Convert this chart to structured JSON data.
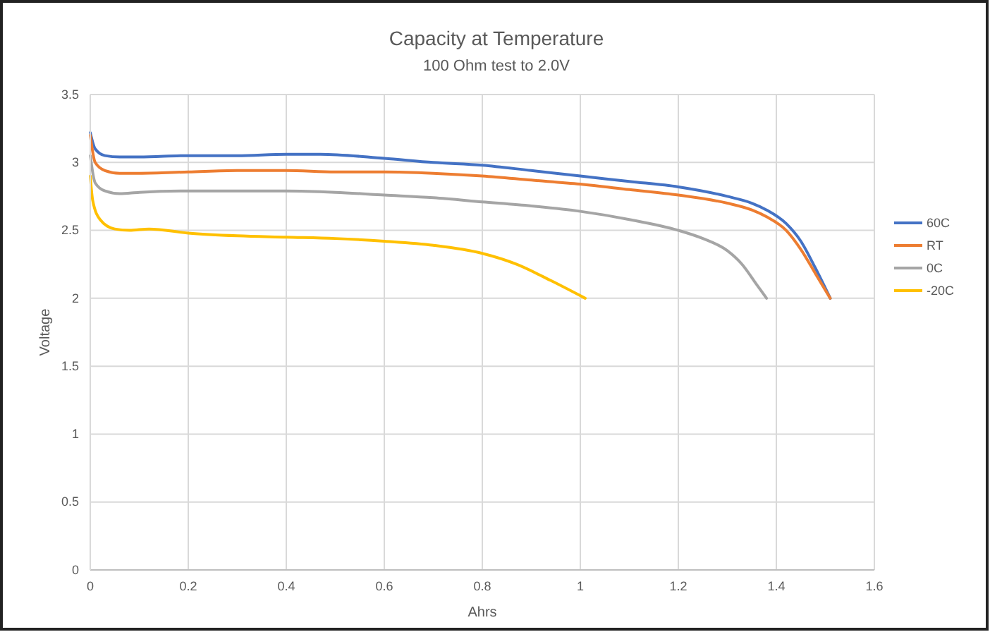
{
  "chart_data": {
    "type": "line",
    "title": "Capacity at Temperature",
    "subtitle": "100 Ohm test to 2.0V",
    "xlabel": "Ahrs",
    "ylabel": "Voltage",
    "xlim": [
      0,
      1.6
    ],
    "xticks": [
      0,
      0.2,
      0.4,
      0.6,
      0.8,
      1,
      1.2,
      1.4,
      1.6
    ],
    "ylim": [
      0,
      3.5
    ],
    "yticks": [
      0,
      0.5,
      1,
      1.5,
      2,
      2.5,
      3,
      3.5
    ],
    "grid": true,
    "legend": "right",
    "marker": "none",
    "line_style": "solid",
    "series": [
      {
        "name": "60C",
        "color": "#4472c4",
        "x": [
          0,
          0.01,
          0.03,
          0.06,
          0.1,
          0.2,
          0.3,
          0.4,
          0.47,
          0.6,
          0.7,
          0.8,
          0.9,
          1.0,
          1.1,
          1.2,
          1.3,
          1.35,
          1.38,
          1.42,
          1.45,
          1.48,
          1.51
        ],
        "values": [
          3.22,
          3.1,
          3.05,
          3.04,
          3.04,
          3.05,
          3.05,
          3.06,
          3.06,
          3.03,
          3.0,
          2.98,
          2.94,
          2.9,
          2.86,
          2.82,
          2.75,
          2.7,
          2.65,
          2.55,
          2.42,
          2.22,
          2.0
        ]
      },
      {
        "name": "RT",
        "color": "#ed7d31",
        "x": [
          0,
          0.01,
          0.03,
          0.06,
          0.1,
          0.2,
          0.3,
          0.4,
          0.5,
          0.6,
          0.7,
          0.8,
          0.9,
          1.0,
          1.1,
          1.2,
          1.3,
          1.35,
          1.38,
          1.42,
          1.45,
          1.48,
          1.51
        ],
        "values": [
          3.2,
          3.0,
          2.94,
          2.92,
          2.92,
          2.93,
          2.94,
          2.94,
          2.93,
          2.93,
          2.92,
          2.9,
          2.87,
          2.84,
          2.8,
          2.76,
          2.7,
          2.65,
          2.6,
          2.5,
          2.36,
          2.18,
          2.0
        ]
      },
      {
        "name": "0C",
        "color": "#a5a5a5",
        "x": [
          0,
          0.01,
          0.03,
          0.06,
          0.1,
          0.2,
          0.3,
          0.4,
          0.5,
          0.6,
          0.7,
          0.8,
          0.9,
          1.0,
          1.1,
          1.2,
          1.25,
          1.3,
          1.33,
          1.36,
          1.38
        ],
        "values": [
          3.05,
          2.85,
          2.79,
          2.77,
          2.78,
          2.79,
          2.79,
          2.79,
          2.78,
          2.76,
          2.74,
          2.71,
          2.68,
          2.64,
          2.58,
          2.5,
          2.44,
          2.35,
          2.25,
          2.1,
          2.0
        ]
      },
      {
        "name": "-20C",
        "color": "#ffc000",
        "x": [
          0,
          0.005,
          0.02,
          0.05,
          0.08,
          0.12,
          0.2,
          0.3,
          0.4,
          0.5,
          0.6,
          0.7,
          0.8,
          0.87,
          0.94,
          1.01
        ],
        "values": [
          2.9,
          2.72,
          2.58,
          2.51,
          2.5,
          2.51,
          2.48,
          2.46,
          2.45,
          2.44,
          2.42,
          2.39,
          2.33,
          2.25,
          2.13,
          2.0
        ]
      }
    ]
  }
}
